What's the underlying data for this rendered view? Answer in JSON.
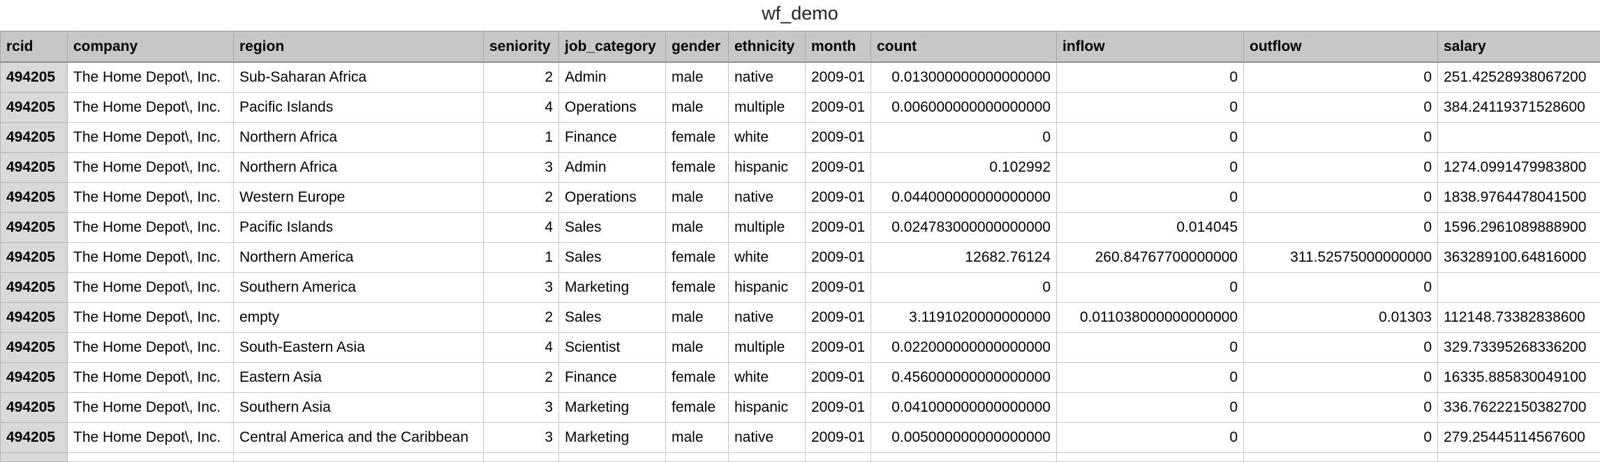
{
  "title": "wf_demo",
  "columns": [
    "rcid",
    "company",
    "region",
    "seniority",
    "job_category",
    "gender",
    "ethnicity",
    "month",
    "count",
    "inflow",
    "outflow",
    "salary"
  ],
  "rows": [
    [
      "494205",
      "The Home Depot\\, Inc.",
      "Sub-Saharan Africa",
      "2",
      "Admin",
      "male",
      "native",
      "2009-01",
      "0.013000000000000000",
      "0",
      "0",
      "251.42528938067200"
    ],
    [
      "494205",
      "The Home Depot\\, Inc.",
      "Pacific Islands",
      "4",
      "Operations",
      "male",
      "multiple",
      "2009-01",
      "0.006000000000000000",
      "0",
      "0",
      "384.24119371528600"
    ],
    [
      "494205",
      "The Home Depot\\, Inc.",
      "Northern Africa",
      "1",
      "Finance",
      "female",
      "white",
      "2009-01",
      "0",
      "0",
      "0",
      ""
    ],
    [
      "494205",
      "The Home Depot\\, Inc.",
      "Northern Africa",
      "3",
      "Admin",
      "female",
      "hispanic",
      "2009-01",
      "0.102992",
      "0",
      "0",
      "1274.0991479983800"
    ],
    [
      "494205",
      "The Home Depot\\, Inc.",
      "Western Europe",
      "2",
      "Operations",
      "male",
      "native",
      "2009-01",
      "0.044000000000000000",
      "0",
      "0",
      "1838.9764478041500"
    ],
    [
      "494205",
      "The Home Depot\\, Inc.",
      "Pacific Islands",
      "4",
      "Sales",
      "male",
      "multiple",
      "2009-01",
      "0.024783000000000000",
      "0.014045",
      "0",
      "1596.2961089888900"
    ],
    [
      "494205",
      "The Home Depot\\, Inc.",
      "Northern America",
      "1",
      "Sales",
      "female",
      "white",
      "2009-01",
      "12682.76124",
      "260.84767700000000",
      "311.52575000000000",
      "363289100.64816000"
    ],
    [
      "494205",
      "The Home Depot\\, Inc.",
      "Southern America",
      "3",
      "Marketing",
      "female",
      "hispanic",
      "2009-01",
      "0",
      "0",
      "0",
      ""
    ],
    [
      "494205",
      "The Home Depot\\, Inc.",
      "empty",
      "2",
      "Sales",
      "male",
      "native",
      "2009-01",
      "3.1191020000000000",
      "0.011038000000000000",
      "0.01303",
      "112148.73382838600"
    ],
    [
      "494205",
      "The Home Depot\\, Inc.",
      "South-Eastern Asia",
      "4",
      "Scientist",
      "male",
      "multiple",
      "2009-01",
      "0.022000000000000000",
      "0",
      "0",
      "329.73395268336200"
    ],
    [
      "494205",
      "The Home Depot\\, Inc.",
      "Eastern Asia",
      "2",
      "Finance",
      "female",
      "white",
      "2009-01",
      "0.456000000000000000",
      "0",
      "0",
      "16335.885830049100"
    ],
    [
      "494205",
      "The Home Depot\\, Inc.",
      "Southern Asia",
      "3",
      "Marketing",
      "female",
      "hispanic",
      "2009-01",
      "0.041000000000000000",
      "0",
      "0",
      "336.76222150382700"
    ],
    [
      "494205",
      "The Home Depot\\, Inc.",
      "Central America and the Caribbean",
      "3",
      "Marketing",
      "male",
      "native",
      "2009-01",
      "0.005000000000000000",
      "0",
      "0",
      "279.25445114567600"
    ]
  ]
}
